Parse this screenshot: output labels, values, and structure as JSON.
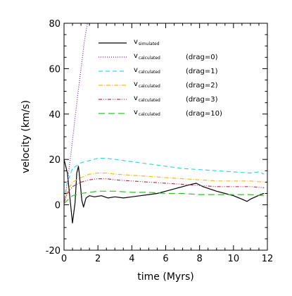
{
  "chart_data": {
    "type": "line",
    "xlabel": "time (Myrs)",
    "ylabel": "velocity (km/s)",
    "xlim": [
      0,
      12
    ],
    "ylim": [
      -20,
      80
    ],
    "xticks": [
      0,
      2,
      4,
      6,
      8,
      10,
      12
    ],
    "yticks": [
      -20,
      0,
      20,
      40,
      60,
      80
    ],
    "grid": false,
    "legend_position": "top-right",
    "series": [
      {
        "name_main": "v",
        "name_sub": "simulated",
        "name_extra": "",
        "color": "#000000",
        "dash": "solid",
        "x": [
          0.0,
          0.2,
          0.35,
          0.5,
          0.65,
          0.75,
          0.85,
          0.95,
          1.05,
          1.15,
          1.3,
          1.5,
          1.8,
          2.2,
          2.6,
          3.0,
          3.5,
          4.0,
          4.5,
          5.0,
          5.5,
          6.0,
          6.5,
          7.0,
          7.5,
          7.8,
          8.2,
          8.6,
          9.0,
          9.5,
          10.0,
          10.5,
          10.8,
          11.0,
          11.3,
          11.6,
          11.8
        ],
        "y": [
          20,
          14,
          3,
          -8,
          1,
          14,
          17,
          10,
          2,
          -1,
          3,
          4,
          3.5,
          4,
          3,
          3.5,
          3,
          3.5,
          4,
          4.5,
          5,
          6,
          7,
          8,
          9,
          9.5,
          8,
          7,
          6,
          5,
          4,
          2.5,
          1.5,
          2.5,
          3.5,
          4.5,
          5
        ]
      },
      {
        "name_main": "v",
        "name_sub": "calculated",
        "name_extra": "(drag=0)",
        "color": "#7a1fb0",
        "dash": "1,2",
        "x": [
          0.0,
          0.2,
          0.4,
          0.6,
          0.8,
          1.0,
          1.2,
          1.4
        ],
        "y": [
          0,
          10,
          22,
          35,
          48,
          60,
          72,
          81
        ]
      },
      {
        "name_main": "v",
        "name_sub": "calculated",
        "name_extra": "(drag=1)",
        "color": "#33d6f0",
        "dash": "6,4",
        "x": [
          0.0,
          0.2,
          0.5,
          1.0,
          1.5,
          2.0,
          2.5,
          3.0,
          4.0,
          5.0,
          6.0,
          7.0,
          8.0,
          9.0,
          10.0,
          11.0,
          11.5,
          11.8
        ],
        "y": [
          2,
          10,
          16,
          18.5,
          19.5,
          20.5,
          20.5,
          20,
          19,
          18,
          17,
          16,
          15.5,
          15,
          14.5,
          14,
          14.5,
          13.5
        ]
      },
      {
        "name_main": "v",
        "name_sub": "calculated",
        "name_extra": "(drag=2)",
        "color": "#f5b82e",
        "dash": "6,2,1,2",
        "x": [
          0.0,
          0.2,
          0.5,
          1.0,
          1.5,
          2.0,
          2.5,
          3.0,
          4.0,
          5.0,
          6.0,
          7.0,
          8.0,
          9.0,
          10.0,
          11.0,
          11.8
        ],
        "y": [
          1,
          6,
          10,
          12,
          13.5,
          14,
          14,
          13.5,
          13,
          12.5,
          12,
          11.5,
          11,
          10.5,
          10.5,
          10.5,
          10
        ]
      },
      {
        "name_main": "v",
        "name_sub": "calculated",
        "name_extra": "(drag=3)",
        "color": "#c8304a",
        "dash": "5,2,1,2,1,2",
        "x": [
          0.0,
          0.2,
          0.5,
          1.0,
          1.5,
          2.0,
          2.5,
          3.0,
          4.0,
          5.0,
          6.0,
          7.0,
          8.0,
          9.0,
          10.0,
          11.0,
          11.8
        ],
        "y": [
          1,
          5,
          8,
          10,
          11,
          11.5,
          11.5,
          11,
          10.5,
          10,
          9.5,
          9,
          8.5,
          8,
          8,
          8,
          7.5
        ]
      },
      {
        "name_main": "v",
        "name_sub": "calculated",
        "name_extra": "(drag=10)",
        "color": "#2ec22e",
        "dash": "9,5",
        "x": [
          0.0,
          0.2,
          0.5,
          1.0,
          1.5,
          2.0,
          2.5,
          3.0,
          4.0,
          5.0,
          6.0,
          7.0,
          8.0,
          9.0,
          10.0,
          11.0,
          11.8
        ],
        "y": [
          0.5,
          2,
          4,
          5,
          5.5,
          6,
          6,
          6,
          5.5,
          5.5,
          5,
          5,
          4.5,
          4.5,
          4.5,
          4.5,
          4
        ]
      }
    ]
  }
}
